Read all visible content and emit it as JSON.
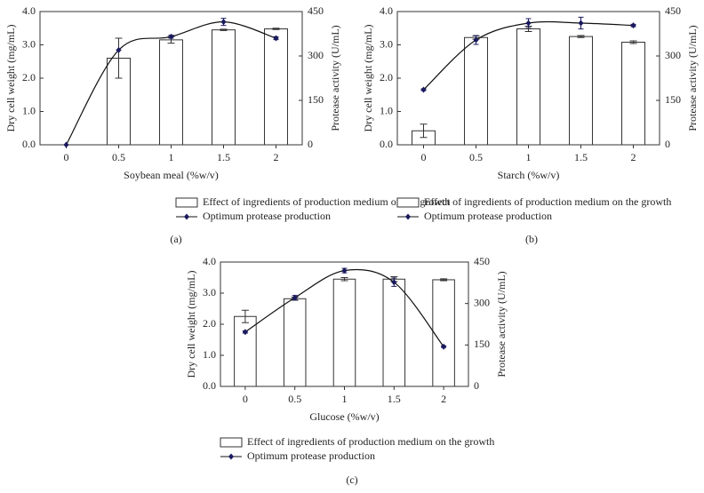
{
  "chart_data": [
    {
      "type": "bar",
      "caption": "(a)",
      "xlabel": "Soybean meal (%w/v)",
      "ylabel": "Dry cell weight (mg/mL)",
      "y2label": "Protease activity (U/mL)",
      "categories": [
        "0",
        "0.5",
        "1",
        "1.5",
        "2"
      ],
      "ylim": [
        0,
        4
      ],
      "yticks": [
        {
          "value": 0,
          "label": "0.0"
        },
        {
          "value": 1,
          "label": "1.0"
        },
        {
          "value": 2,
          "label": "2.0"
        },
        {
          "value": 3,
          "label": "3.0"
        },
        {
          "value": 4,
          "label": "4.0"
        }
      ],
      "y2lim": [
        0,
        450
      ],
      "y2ticks": [
        0,
        150,
        300,
        450
      ],
      "series": [
        {
          "name": "Effect of ingredients of production medium on the growth",
          "type": "bar",
          "color": "#ffffff",
          "values": [
            0,
            2.6,
            3.15,
            3.45,
            3.48
          ],
          "errors": [
            0,
            0.6,
            0.1,
            0.02,
            0.02
          ]
        },
        {
          "name": "Optimum protease production",
          "type": "line",
          "axis": "y2",
          "color": "#1a1a5e",
          "values": [
            0,
            320,
            365,
            415,
            360
          ],
          "errors": [
            0,
            0,
            5,
            12,
            5
          ]
        }
      ]
    },
    {
      "type": "bar",
      "caption": "(b)",
      "xlabel": "Starch (%w/v)",
      "ylabel": "Dry cell weight (mg/mL)",
      "y2label": "Protease activity (U/mL)",
      "categories": [
        "0",
        "0.5",
        "1",
        "1.5",
        "2"
      ],
      "ylim": [
        0,
        4
      ],
      "yticks": [
        {
          "value": 0,
          "label": "0.0"
        },
        {
          "value": 1,
          "label": "1.0"
        },
        {
          "value": 2,
          "label": "2.0"
        },
        {
          "value": 3,
          "label": "3.0"
        },
        {
          "value": 4,
          "label": "4.0"
        }
      ],
      "y2lim": [
        0,
        450
      ],
      "y2ticks": [
        0,
        150,
        300,
        450
      ],
      "series": [
        {
          "name": "Effect of ingredients of production medium on the growth",
          "type": "bar",
          "color": "#ffffff",
          "values": [
            0.42,
            3.22,
            3.48,
            3.25,
            3.08
          ],
          "errors": [
            0.2,
            0.05,
            0.08,
            0.03,
            0.04
          ]
        },
        {
          "name": "Optimum protease production",
          "type": "line",
          "axis": "y2",
          "color": "#1a1a5e",
          "values": [
            186,
            354,
            411,
            411,
            403
          ],
          "errors": [
            3,
            15,
            15,
            20,
            4
          ]
        }
      ]
    },
    {
      "type": "bar",
      "caption": "(c)",
      "xlabel": "Glucose (%w/v)",
      "ylabel": "Dry cell weight (mg/mL)",
      "y2label": "Protease activity (U/mL)",
      "categories": [
        "0",
        "0.5",
        "1",
        "1.5",
        "2"
      ],
      "ylim": [
        0,
        4
      ],
      "yticks": [
        {
          "value": 0,
          "label": "0.0"
        },
        {
          "value": 1,
          "label": "1.0"
        },
        {
          "value": 2,
          "label": "2.0"
        },
        {
          "value": 3,
          "label": "3.0"
        },
        {
          "value": 4,
          "label": "4.0"
        }
      ],
      "y2lim": [
        0,
        450
      ],
      "y2ticks": [
        0,
        150,
        300,
        450
      ],
      "series": [
        {
          "name": "Effect of ingredients of production medium on the growth",
          "type": "bar",
          "color": "#ffffff",
          "values": [
            2.25,
            2.82,
            3.45,
            3.45,
            3.43
          ],
          "errors": [
            0.2,
            0.05,
            0.05,
            0.08,
            0.03
          ]
        },
        {
          "name": "Optimum protease production",
          "type": "line",
          "axis": "y2",
          "color": "#1a1a5e",
          "values": [
            197,
            321,
            419,
            377,
            144
          ],
          "errors": [
            4,
            8,
            8,
            15,
            3
          ]
        }
      ]
    }
  ]
}
